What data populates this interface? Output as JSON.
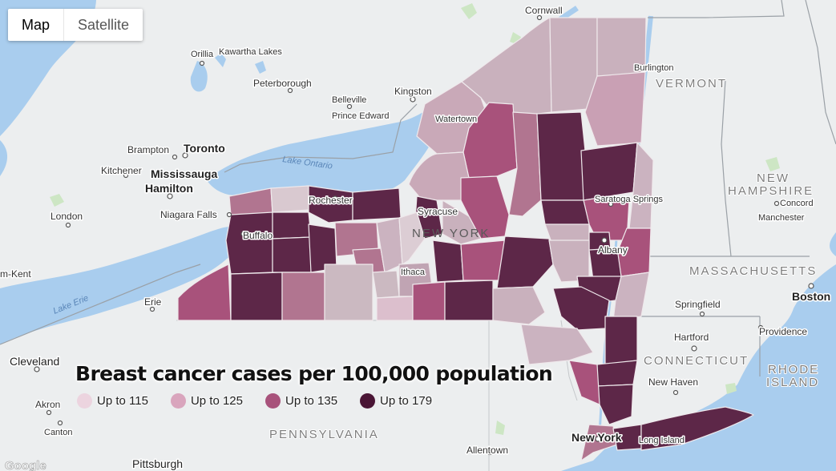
{
  "map_type_control": {
    "options": [
      "Map",
      "Satellite"
    ],
    "selected": "Map"
  },
  "legend": {
    "title": "Breast cancer cases per 100,000 population",
    "items": [
      {
        "label": "Up to 115",
        "color": "#ecd4df"
      },
      {
        "label": "Up to 125",
        "color": "#d9a5bd"
      },
      {
        "label": "Up to 135",
        "color": "#a8527b"
      },
      {
        "label": "Up to 179",
        "color": "#4a1535"
      }
    ]
  },
  "labels": {
    "cities": [
      "Toronto",
      "Mississauga",
      "Hamilton",
      "Brampton",
      "Kitchener",
      "London",
      "Niagara Falls",
      "Buffalo",
      "Rochester",
      "Syracuse",
      "Ithaca",
      "Watertown",
      "Kingston",
      "Belleville",
      "Prince Edward",
      "Peterborough",
      "Orillia",
      "Kawartha Lakes",
      "Cornwall",
      "Burlington",
      "Albany",
      "Saratoga Springs",
      "Concord",
      "Manchester",
      "Boston",
      "Springfield",
      "Hartford",
      "Providence",
      "New Haven",
      "New York",
      "Long Island",
      "Allentown",
      "Pittsburgh",
      "Akron",
      "Canton",
      "Cleveland",
      "Erie",
      "Chatham-Kent"
    ],
    "chatham_kent_visible": "m-Kent",
    "states": [
      "VERMONT",
      "NEW",
      "HAMPSHIRE",
      "MASSACHUSETTS",
      "CONNECTICUT",
      "RHODE",
      "ISLAND",
      "PENNSYLVANIA",
      "NEW YORK"
    ],
    "water": [
      "Lake Ontario",
      "Lake Erie"
    ],
    "attribution": "Google"
  },
  "colors": {
    "water": "#a9cdee",
    "land": "#e9ecee",
    "bin1": "#ecd4df",
    "bin2": "#d9a5bd",
    "bin3": "#a8527b",
    "bin4": "#4a1535"
  }
}
